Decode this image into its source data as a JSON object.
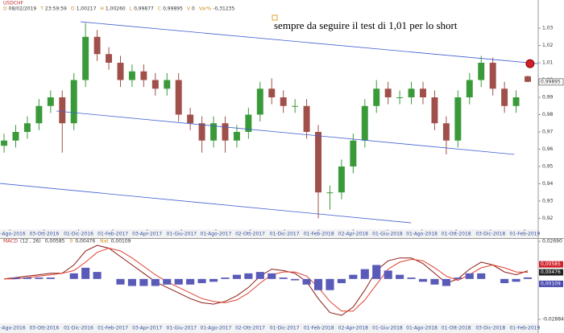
{
  "header": {
    "symbol": "USDCHF",
    "fields": [
      {
        "label": "D",
        "value": "08/02/2019"
      },
      {
        "label": "T",
        "value": "23:59:59"
      },
      {
        "label": "O",
        "value": "1,00217"
      },
      {
        "label": "H",
        "value": "1,00260"
      },
      {
        "label": "L",
        "value": "0,99877"
      },
      {
        "label": "C",
        "value": "0,99895"
      },
      {
        "label": "V",
        "value": "0"
      },
      {
        "label": "Var%",
        "value": "-0,31235"
      }
    ]
  },
  "annotation": "sempre da seguire il test di 1,01 per lo short",
  "chart_data": [
    {
      "type": "candlestick",
      "up_color": "#3a9a3a",
      "down_color": "#a0504a",
      "open": [
        0.962,
        0.965,
        0.97,
        0.975,
        0.985,
        0.99,
        0.975,
        1.0,
        1.025,
        1.015,
        1.01,
        1.0,
        1.005,
        1.0,
        0.995,
        1.0,
        0.98,
        0.975,
        0.965,
        0.975,
        0.965,
        0.97,
        0.98,
        0.995,
        0.99,
        0.985,
        0.985,
        0.97,
        0.935,
        0.935,
        0.95,
        0.965,
        0.985,
        0.995,
        0.99,
        0.99,
        0.995,
        0.99,
        0.975,
        0.965,
        0.99,
        1.0,
        1.01,
        0.995,
        0.985,
        1.00217
      ],
      "high": [
        0.969,
        0.974,
        0.979,
        0.989,
        0.994,
        0.994,
        1.004,
        1.033,
        1.029,
        1.019,
        1.014,
        1.009,
        1.009,
        1.004,
        1.004,
        1.004,
        0.984,
        0.979,
        0.979,
        0.979,
        0.974,
        0.984,
        0.999,
        1.001,
        0.994,
        0.989,
        0.989,
        0.974,
        0.939,
        0.954,
        0.969,
        0.989,
        1.0,
        0.999,
        0.994,
        0.999,
        0.999,
        0.994,
        0.979,
        0.994,
        1.004,
        1.014,
        1.013,
        0.999,
        0.994,
        1.0026
      ],
      "low": [
        0.958,
        0.961,
        0.966,
        0.971,
        0.981,
        0.958,
        0.971,
        0.996,
        1.011,
        1.006,
        0.996,
        0.996,
        0.996,
        0.991,
        0.991,
        0.976,
        0.971,
        0.958,
        0.961,
        0.958,
        0.961,
        0.966,
        0.976,
        0.986,
        0.981,
        0.981,
        0.966,
        0.92,
        0.925,
        0.931,
        0.946,
        0.961,
        0.981,
        0.986,
        0.986,
        0.986,
        0.986,
        0.971,
        0.957,
        0.961,
        0.986,
        0.996,
        0.991,
        0.981,
        0.981,
        0.99877
      ],
      "close": [
        0.965,
        0.97,
        0.975,
        0.985,
        0.99,
        0.975,
        1.0,
        1.025,
        1.015,
        1.01,
        1.0,
        1.005,
        1.0,
        0.995,
        1.0,
        0.98,
        0.975,
        0.965,
        0.975,
        0.965,
        0.97,
        0.98,
        0.995,
        0.99,
        0.985,
        0.985,
        0.97,
        0.935,
        0.935,
        0.95,
        0.965,
        0.985,
        0.995,
        0.99,
        0.99,
        0.995,
        0.99,
        0.975,
        0.965,
        0.99,
        1.0,
        1.01,
        0.995,
        0.985,
        0.99,
        0.99895
      ],
      "xlim": [
        -0.35,
        45.9
      ],
      "ylim": [
        0.9137,
        1.0463
      ],
      "xticks": [
        {
          "value": 0.5,
          "label": "01-Ago-2016"
        },
        {
          "value": 3.45,
          "label": "03-Ott-2016"
        },
        {
          "value": 6.4,
          "label": "01-Dic-2016"
        },
        {
          "value": 9.35,
          "label": "01-Feb-2017"
        },
        {
          "value": 12.3,
          "label": "03-Apr-2017"
        },
        {
          "value": 15.25,
          "label": "01-Giu-2017"
        },
        {
          "value": 18.2,
          "label": "01-Ago-2017"
        },
        {
          "value": 21.15,
          "label": "02-Ott-2017"
        },
        {
          "value": 24.1,
          "label": "01-Dic-2017"
        },
        {
          "value": 27.05,
          "label": "01-Feb-2018"
        },
        {
          "value": 30,
          "label": "02-Apr-2018"
        },
        {
          "value": 32.95,
          "label": "01-Giu-2018"
        },
        {
          "value": 35.9,
          "label": "01-Ago-2018"
        },
        {
          "value": 38.85,
          "label": "01-Ott-2018"
        },
        {
          "value": 41.8,
          "label": "03-Dic-2018"
        },
        {
          "value": 44.75,
          "label": "01-Feb-2019"
        }
      ],
      "yticks": [
        {
          "value": 0.92,
          "label": "0,92"
        },
        {
          "value": 0.93,
          "label": "0,93"
        },
        {
          "value": 0.94,
          "label": "0,94"
        },
        {
          "value": 0.95,
          "label": "0,95"
        },
        {
          "value": 0.96,
          "label": "0,96"
        },
        {
          "value": 0.97,
          "label": "0,97"
        },
        {
          "value": 0.98,
          "label": "0,98"
        },
        {
          "value": 0.99,
          "label": "0,99"
        },
        {
          "value": 1.0,
          "label": "1,00"
        },
        {
          "value": 1.01,
          "label": "1,01"
        },
        {
          "value": 1.02,
          "label": "1,02"
        },
        {
          "value": 1.03,
          "label": "1,03"
        }
      ],
      "last_value": {
        "value": 0.99895,
        "label": "0,99895"
      },
      "trendline_color": "#3f5fd0",
      "trendlines": [
        {
          "x": [
            6.58,
            45.9
          ],
          "y": [
            1.0337,
            1.0095
          ]
        },
        {
          "x": [
            4.5,
            43.84
          ],
          "y": [
            0.9821,
            0.957
          ]
        },
        {
          "x": [
            -0.35,
            34.97
          ],
          "y": [
            0.9402,
            0.9174
          ]
        }
      ],
      "marker": {
        "x": 45.2,
        "y": 1.0095,
        "color": "#d0202a"
      }
    },
    {
      "type": "macd",
      "title": "MACD",
      "params": "(12 , 26)",
      "xlim": [
        -0.35,
        45.9
      ],
      "ylim": [
        -0.03171,
        0.02862
      ],
      "yticks": [
        {
          "value": 0.0269,
          "label": "0,02690"
        },
        {
          "value": -0.02884,
          "label": "-0,02884"
        }
      ],
      "series": [
        {
          "label": "MACD",
          "color": "#8a1a12",
          "value_label": "0,00585",
          "box_color": "#d0202a",
          "values": [
            0.0,
            0.001,
            0.002,
            0.003,
            0.004,
            0.004,
            0.01,
            0.02,
            0.024,
            0.022,
            0.016,
            0.01,
            0.004,
            -0.002,
            -0.006,
            -0.01,
            -0.014,
            -0.017,
            -0.018,
            -0.016,
            -0.012,
            -0.006,
            0.002,
            0.007,
            0.006,
            0.004,
            -0.002,
            -0.014,
            -0.024,
            -0.026,
            -0.02,
            -0.008,
            0.006,
            0.013,
            0.015,
            0.015,
            0.011,
            0.004,
            -0.003,
            0.0,
            0.007,
            0.012,
            0.01,
            0.005,
            0.003,
            0.00585
          ]
        },
        {
          "label": "9",
          "color": "#e04030",
          "value_label": "0,00476",
          "box_color": "#222222",
          "values": [
            0.0,
            0.0,
            0.001,
            0.002,
            0.003,
            0.004,
            0.006,
            0.012,
            0.019,
            0.022,
            0.02,
            0.015,
            0.009,
            0.003,
            -0.002,
            -0.006,
            -0.01,
            -0.014,
            -0.016,
            -0.017,
            -0.015,
            -0.01,
            -0.003,
            0.003,
            0.005,
            0.005,
            0.002,
            -0.006,
            -0.016,
            -0.023,
            -0.023,
            -0.015,
            -0.004,
            0.007,
            0.012,
            0.014,
            0.013,
            0.008,
            0.002,
            -0.001,
            0.003,
            0.008,
            0.01,
            0.008,
            0.005,
            0.00476
          ]
        },
        {
          "label": "Nat",
          "color": "#5a5ab8",
          "value_label": "0,00109",
          "box_color": "#4a4ab0",
          "histogram": true,
          "values": [
            0.0,
            0.001,
            0.001,
            0.001,
            0.001,
            0.0,
            0.004,
            0.008,
            0.005,
            0.0,
            -0.004,
            -0.005,
            -0.005,
            -0.005,
            -0.004,
            -0.004,
            -0.004,
            -0.003,
            -0.002,
            0.001,
            0.003,
            0.004,
            0.005,
            0.004,
            0.001,
            -0.001,
            -0.004,
            -0.008,
            -0.008,
            -0.003,
            0.003,
            0.007,
            0.01,
            0.006,
            0.003,
            0.001,
            -0.002,
            -0.004,
            -0.005,
            0.001,
            0.004,
            0.004,
            0.0,
            -0.003,
            -0.002,
            0.00109
          ]
        }
      ]
    }
  ]
}
